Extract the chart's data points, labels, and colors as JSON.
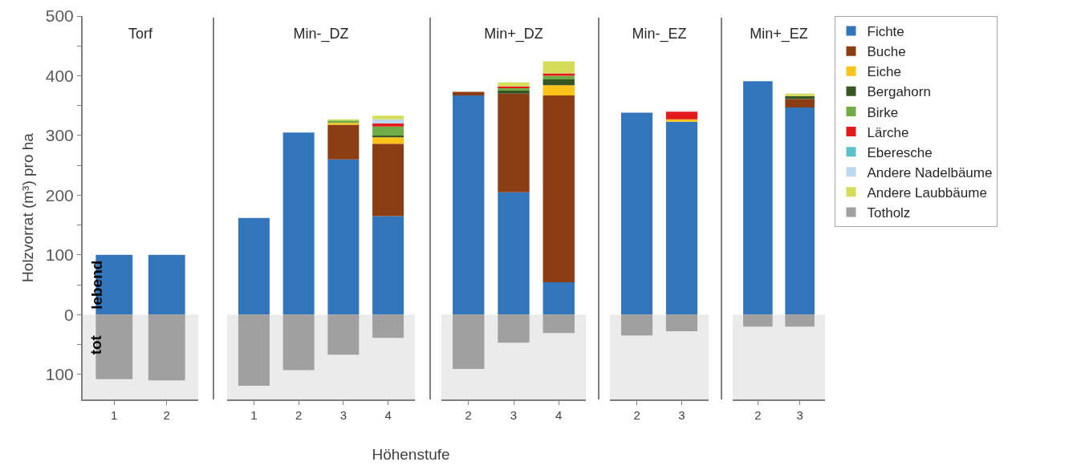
{
  "chart_data": [
    {
      "type": "bar",
      "title": "Torf",
      "stacked": true,
      "ylabel": "Holzvorrat (m³) pro ha",
      "categories": [
        "1",
        "2"
      ],
      "ylim": [
        -142,
        500
      ],
      "yticks": [
        {
          "value": -100,
          "label": "100"
        },
        {
          "value": -50,
          "label": null
        },
        0,
        {
          "value": 50,
          "label": null
        },
        100,
        {
          "value": 150,
          "label": null
        },
        200,
        {
          "value": 250,
          "label": null
        },
        300,
        {
          "value": 350,
          "label": null
        },
        400,
        {
          "value": 450,
          "label": null
        },
        500
      ],
      "grid": false,
      "annotations": [
        {
          "text": "lebend",
          "y": 50
        },
        {
          "text": "tot",
          "y": -50
        }
      ],
      "bands": [
        {
          "axis": "y",
          "from": 0,
          "to": -142,
          "color": "#ebebeb"
        }
      ],
      "series": [
        {
          "color": "#3275bb",
          "values": [
            100,
            100
          ]
        },
        {
          "color": "#a0a0a0",
          "values": [
            -108,
            -110
          ]
        }
      ]
    },
    {
      "type": "bar",
      "title": "Min-_DZ",
      "stacked": true,
      "xlabel": "Höhenstufe",
      "categories": [
        "1",
        "2",
        "3",
        "4"
      ],
      "ylim": [
        -142,
        500
      ],
      "tick_labels": "x",
      "grid": false,
      "bands": [
        {
          "axis": "y",
          "from": 0,
          "to": -142,
          "color": "#ebebeb"
        }
      ],
      "series": [
        {
          "color": "#3275bb",
          "values": [
            162,
            305,
            260,
            165
          ]
        },
        {
          "color": "#8b3d14",
          "values": [
            null,
            null,
            58,
            121
          ]
        },
        {
          "color": "#fcc419",
          "values": [
            null,
            null,
            3,
            11
          ]
        },
        {
          "color": "#375623",
          "values": [
            null,
            null,
            null,
            3
          ]
        },
        {
          "color": "#70ad47",
          "values": [
            null,
            null,
            4,
            15
          ]
        },
        {
          "color": "#e31a1c",
          "values": [
            null,
            null,
            null,
            5
          ]
        },
        {
          "color": "#bdd7ee",
          "values": [
            null,
            null,
            null,
            7
          ]
        },
        {
          "color": "#d4dc5a",
          "values": [
            null,
            null,
            2,
            6
          ]
        },
        {
          "color": "#a0a0a0",
          "values": [
            -119,
            -93,
            -67,
            -39
          ]
        }
      ]
    },
    {
      "type": "bar",
      "title": "Min+_DZ",
      "stacked": true,
      "categories": [
        "2",
        "3",
        "4"
      ],
      "ylim": [
        -142,
        500
      ],
      "tick_labels": "x",
      "grid": false,
      "bands": [
        {
          "axis": "y",
          "from": 0,
          "to": -142,
          "color": "#ebebeb"
        }
      ],
      "series": [
        {
          "color": "#3275bb",
          "values": [
            367,
            205,
            54
          ]
        },
        {
          "color": "#8b3d14",
          "values": [
            6,
            165,
            313
          ]
        },
        {
          "color": "#fcc419",
          "values": [
            null,
            null,
            17
          ]
        },
        {
          "color": "#375623",
          "values": [
            null,
            5,
            10
          ]
        },
        {
          "color": "#70ad47",
          "values": [
            null,
            4,
            6
          ]
        },
        {
          "color": "#e31a1c",
          "values": [
            null,
            3,
            4
          ]
        },
        {
          "color": "#d4dc5a",
          "values": [
            null,
            7,
            20
          ]
        },
        {
          "color": "#a0a0a0",
          "values": [
            -91,
            -47,
            -31
          ]
        }
      ]
    },
    {
      "type": "bar",
      "title": "Min-_EZ",
      "stacked": true,
      "categories": [
        "2",
        "3"
      ],
      "ylim": [
        -142,
        500
      ],
      "tick_labels": "x",
      "grid": false,
      "bands": [
        {
          "axis": "y",
          "from": 0,
          "to": -142,
          "color": "#ebebeb"
        }
      ],
      "series": [
        {
          "color": "#3275bb",
          "values": [
            338,
            323
          ]
        },
        {
          "color": "#fcc419",
          "values": [
            null,
            4
          ]
        },
        {
          "color": "#e31a1c",
          "values": [
            null,
            13
          ]
        },
        {
          "color": "#a0a0a0",
          "values": [
            -35,
            -28
          ]
        }
      ]
    },
    {
      "type": "bar",
      "title": "Min+_EZ",
      "stacked": true,
      "categories": [
        "2",
        "3"
      ],
      "ylim": [
        -142,
        500
      ],
      "tick_labels": "x",
      "grid": false,
      "legend": "right",
      "bands": [
        {
          "axis": "y",
          "from": 0,
          "to": -142,
          "color": "#ebebeb"
        }
      ],
      "series": [
        {
          "name": "Fichte",
          "color": "#3275bb",
          "values": [
            391,
            347
          ]
        },
        {
          "name": "Buche",
          "color": "#8b3d14",
          "values": [
            null,
            14
          ]
        },
        {
          "name": "Eiche",
          "color": "#fcc419",
          "values": [
            null,
            null
          ]
        },
        {
          "name": "Bergahorn",
          "color": "#375623",
          "values": [
            null,
            5
          ]
        },
        {
          "name": "Birke",
          "color": "#70ad47",
          "values": [
            null,
            null
          ]
        },
        {
          "name": "Lärche",
          "color": "#e31a1c",
          "values": [
            null,
            null
          ]
        },
        {
          "name": "Eberesche",
          "color": "#5bc0c8",
          "values": [
            null,
            null
          ]
        },
        {
          "name": "Andere Nadelbäume",
          "color": "#bdd7ee",
          "values": [
            null,
            null
          ]
        },
        {
          "name": "Andere Laubbäume",
          "color": "#d4dc5a",
          "values": [
            null,
            4
          ]
        },
        {
          "name": "Totholz",
          "color": "#a0a0a0",
          "values": [
            -20,
            -20
          ]
        }
      ]
    }
  ]
}
